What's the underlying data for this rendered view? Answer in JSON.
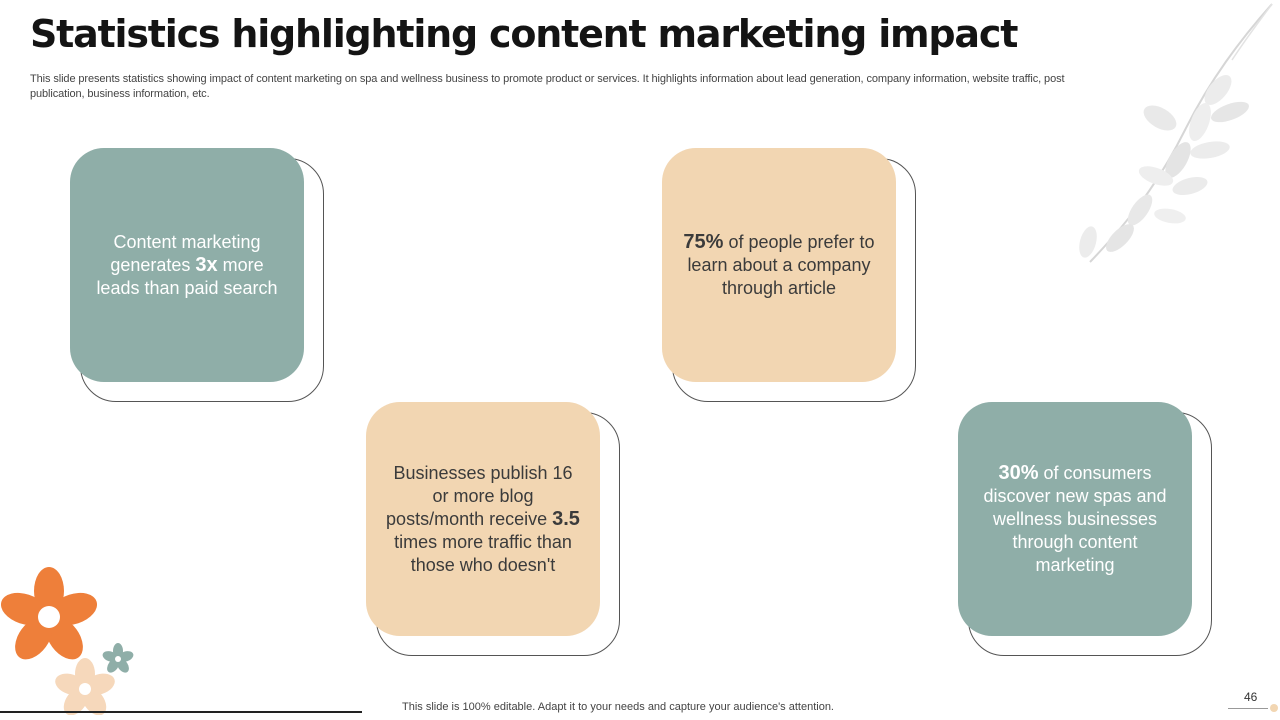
{
  "slide": {
    "title": "Statistics highlighting content marketing impact",
    "subtitle": "This slide presents statistics showing impact of content marketing on spa and wellness business to promote product or services. It highlights information about lead generation, company information, website traffic, post publication, business information, etc.",
    "footer_note": "This slide is 100% editable. Adapt it to your needs and capture your audience's attention.",
    "page_number": "46"
  },
  "cards": [
    {
      "color": "#8faea8",
      "before": "Content marketing generates ",
      "highlight": "3x",
      "after": " more leads than paid search"
    },
    {
      "color": "#f2d6b2",
      "before": "",
      "highlight": "75%",
      "after": " of people prefer to learn about a company through article"
    },
    {
      "color": "#f2d6b2",
      "before": "Businesses publish 16 or more blog posts/month receive ",
      "highlight": "3.5",
      "after": " times more traffic than those who doesn't"
    },
    {
      "color": "#8faea8",
      "before": "",
      "highlight": "30%",
      "after": " of consumers discover new spas and wellness businesses through content marketing"
    }
  ],
  "decorations": {
    "top_right": "leaf-branch-icon",
    "bottom_left": "flower-cluster-icon"
  }
}
